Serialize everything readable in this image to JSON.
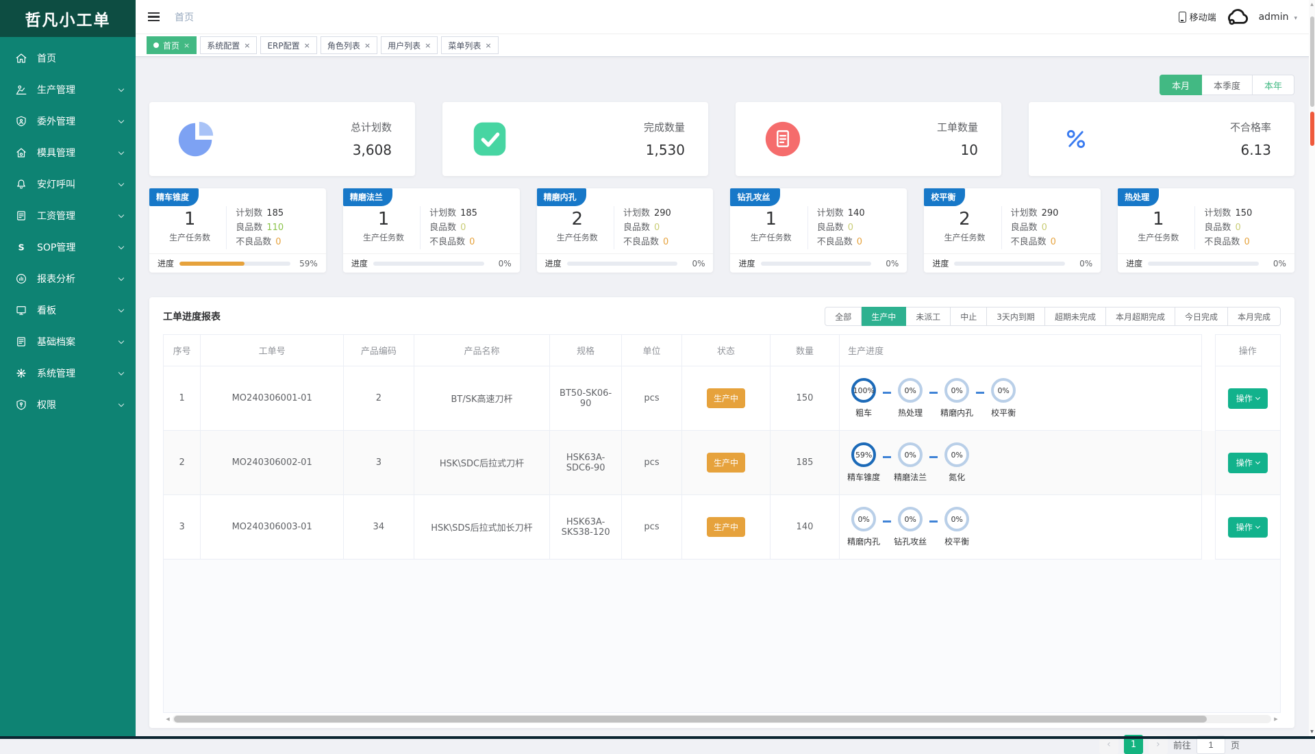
{
  "app": {
    "title": "哲凡小工单"
  },
  "header": {
    "breadcrumb": "首页",
    "mobile_label": "移动端",
    "username": "admin"
  },
  "glyphs": {
    "caret_down": "▾",
    "tab_close": "×",
    "scroll_up": "▲",
    "scroll_down": "▼",
    "scroll_left": "◀",
    "scroll_right": "▶"
  },
  "sidebar": {
    "items": [
      {
        "label": "首页",
        "icon": "home-icon",
        "expandable": false
      },
      {
        "label": "生产管理",
        "icon": "production-icon",
        "expandable": true
      },
      {
        "label": "委外管理",
        "icon": "outsource-icon",
        "expandable": true
      },
      {
        "label": "模具管理",
        "icon": "mold-icon",
        "expandable": true
      },
      {
        "label": "安灯呼叫",
        "icon": "andon-icon",
        "expandable": true
      },
      {
        "label": "工资管理",
        "icon": "salary-icon",
        "expandable": true
      },
      {
        "label": "SOP管理",
        "icon": "sop-icon",
        "expandable": true
      },
      {
        "label": "报表分析",
        "icon": "report-icon",
        "expandable": true
      },
      {
        "label": "看板",
        "icon": "board-icon",
        "expandable": true
      },
      {
        "label": "基础档案",
        "icon": "archive-icon",
        "expandable": true
      },
      {
        "label": "系统管理",
        "icon": "system-icon",
        "expandable": true
      },
      {
        "label": "权限",
        "icon": "permission-icon",
        "expandable": true
      }
    ]
  },
  "tabs": [
    {
      "label": "首页",
      "active": true
    },
    {
      "label": "系统配置",
      "active": false
    },
    {
      "label": "ERP配置",
      "active": false
    },
    {
      "label": "角色列表",
      "active": false
    },
    {
      "label": "用户列表",
      "active": false
    },
    {
      "label": "菜单列表",
      "active": false
    }
  ],
  "period_tabs": [
    {
      "label": "本月",
      "state": "active"
    },
    {
      "label": "本季度",
      "state": "normal"
    },
    {
      "label": "本年",
      "state": "highlight"
    }
  ],
  "stat_cards": [
    {
      "title": "总计划数",
      "value": "3,608",
      "icon": "pie-chart-icon"
    },
    {
      "title": "完成数量",
      "value": "1,530",
      "icon": "check-icon"
    },
    {
      "title": "工单数量",
      "value": "10",
      "icon": "order-icon"
    },
    {
      "title": "不合格率",
      "value": "6.13",
      "icon": "percent-icon"
    }
  ],
  "process_labels": {
    "tasks": "生产任务数",
    "plan": "计划数",
    "good": "良品数",
    "bad": "不良品数",
    "progress": "进度"
  },
  "process_cards": [
    {
      "name": "精车锥度",
      "tasks": "1",
      "plan": "185",
      "good": "110",
      "bad": "0",
      "progress": 59,
      "progress_text": "59%",
      "good_color": "#8bc34a"
    },
    {
      "name": "精磨法兰",
      "tasks": "1",
      "plan": "185",
      "good": "0",
      "bad": "0",
      "progress": 0,
      "progress_text": "0%",
      "good_color": "#c9cc75"
    },
    {
      "name": "精磨内孔",
      "tasks": "2",
      "plan": "290",
      "good": "0",
      "bad": "0",
      "progress": 0,
      "progress_text": "0%",
      "good_color": "#c9cc75"
    },
    {
      "name": "钻孔攻丝",
      "tasks": "1",
      "plan": "140",
      "good": "0",
      "bad": "0",
      "progress": 0,
      "progress_text": "0%",
      "good_color": "#c9cc75"
    },
    {
      "name": "校平衡",
      "tasks": "2",
      "plan": "290",
      "good": "0",
      "bad": "0",
      "progress": 0,
      "progress_text": "0%",
      "good_color": "#c9cc75"
    },
    {
      "name": "热处理",
      "tasks": "1",
      "plan": "150",
      "good": "0",
      "bad": "0",
      "progress": 0,
      "progress_text": "0%",
      "good_color": "#c9cc75"
    }
  ],
  "work_table": {
    "title": "工单进度报表",
    "filters": [
      {
        "label": "全部",
        "active": false
      },
      {
        "label": "生产中",
        "active": true
      },
      {
        "label": "未派工",
        "active": false
      },
      {
        "label": "中止",
        "active": false
      },
      {
        "label": "3天内到期",
        "active": false
      },
      {
        "label": "超期未完成",
        "active": false
      },
      {
        "label": "本月超期完成",
        "active": false
      },
      {
        "label": "今日完成",
        "active": false
      },
      {
        "label": "本月完成",
        "active": false
      }
    ],
    "columns": [
      "序号",
      "工单号",
      "产品编码",
      "产品名称",
      "规格",
      "单位",
      "状态",
      "数量",
      "生产进度",
      "操作"
    ],
    "action_label": "操作",
    "rows": [
      {
        "seq": "1",
        "order_no": "MO240306001-01",
        "product_code": "2",
        "product_name": "BT/SK高速刀杆",
        "spec": "BT50-SK06-90",
        "unit": "pcs",
        "status": "生产中",
        "qty": "150",
        "steps": [
          {
            "pct": "100%",
            "label": "粗车",
            "done": true
          },
          {
            "pct": "0%",
            "label": "热处理",
            "done": false
          },
          {
            "pct": "0%",
            "label": "精磨内孔",
            "done": false
          },
          {
            "pct": "0%",
            "label": "校平衡",
            "done": false
          }
        ]
      },
      {
        "seq": "2",
        "order_no": "MO240306002-01",
        "product_code": "3",
        "product_name": "HSK\\SDC后拉式刀杆",
        "spec": "HSK63A-SDC6-90",
        "unit": "pcs",
        "status": "生产中",
        "qty": "185",
        "steps": [
          {
            "pct": "59%",
            "label": "精车锥度",
            "done": true
          },
          {
            "pct": "0%",
            "label": "精磨法兰",
            "done": false
          },
          {
            "pct": "0%",
            "label": "氮化",
            "done": false
          }
        ]
      },
      {
        "seq": "3",
        "order_no": "MO240306003-01",
        "product_code": "34",
        "product_name": "HSK\\SDS后拉式加长刀杆",
        "spec": "HSK63A-SKS38-120",
        "unit": "pcs",
        "status": "生产中",
        "qty": "140",
        "steps": [
          {
            "pct": "0%",
            "label": "精磨内孔",
            "done": false
          },
          {
            "pct": "0%",
            "label": "钻孔攻丝",
            "done": false
          },
          {
            "pct": "0%",
            "label": "校平衡",
            "done": false
          }
        ]
      }
    ]
  },
  "pagination": {
    "prev": "‹",
    "active_page": "1",
    "next": "›",
    "goto_label": "前往",
    "goto_value": "1",
    "unit_label": "页"
  },
  "colors": {
    "sidebar": "#0e8373",
    "sidebar_logo": "#0d4d42",
    "primary_green": "#42b983",
    "button_green": "#12b28c",
    "filter_green": "#2eb190",
    "badge_blue": "#1778c8",
    "status_orange": "#e6a23c",
    "circle_done": "#1c6ab8",
    "circle_pending": "#b9cfe8"
  }
}
